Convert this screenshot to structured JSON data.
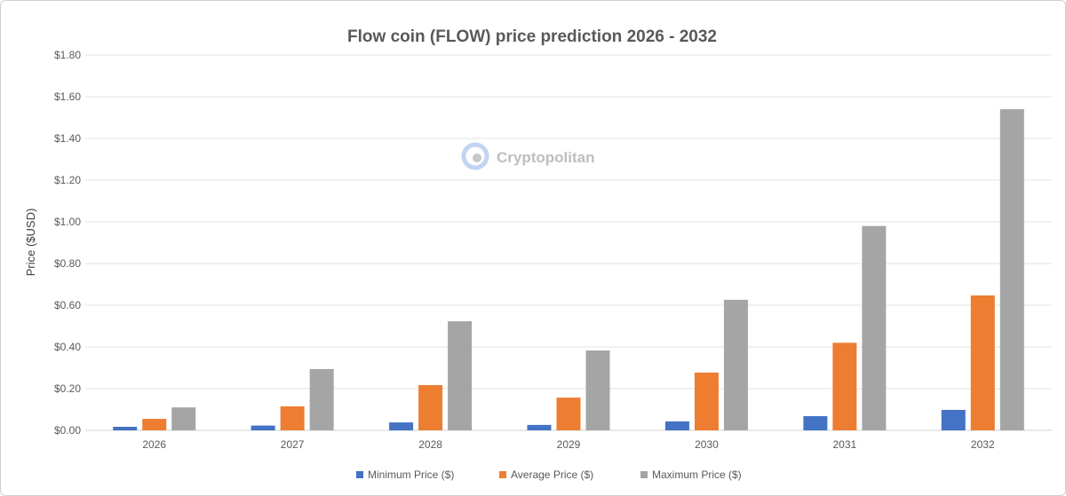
{
  "chart_data": {
    "type": "bar",
    "title": "Flow coin (FLOW) price prediction 2026 - 2032",
    "xlabel": "",
    "ylabel": "Price ($USD)",
    "ylim": [
      0,
      1.8
    ],
    "yticks": [
      "$0.00",
      "$0.20",
      "$0.40",
      "$0.60",
      "$0.80",
      "$1.00",
      "$1.20",
      "$1.40",
      "$1.60",
      "$1.80"
    ],
    "grid": true,
    "legend_position": "bottom",
    "categories": [
      "2026",
      "2027",
      "2028",
      "2029",
      "2030",
      "2031",
      "2032"
    ],
    "series": [
      {
        "name": "Minimum Price ($)",
        "color": "#4472c4",
        "values": [
          0.017,
          0.023,
          0.038,
          0.026,
          0.043,
          0.068,
          0.098
        ]
      },
      {
        "name": "Average Price ($)",
        "color": "#ed7d31",
        "values": [
          0.055,
          0.115,
          0.217,
          0.157,
          0.277,
          0.42,
          0.647
        ]
      },
      {
        "name": "Maximum Price ($)",
        "color": "#a5a5a5",
        "values": [
          0.11,
          0.294,
          0.523,
          0.383,
          0.626,
          0.98,
          1.54
        ]
      }
    ]
  },
  "watermark": "Cryptopolitan"
}
